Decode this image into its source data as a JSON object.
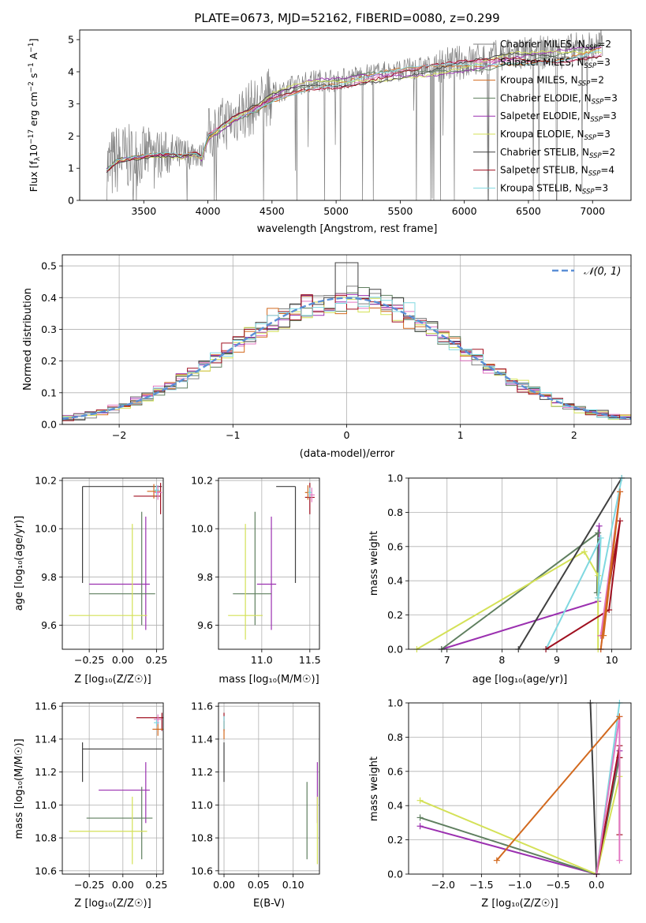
{
  "figure_title": "PLATE=0673, MJD=52162, FIBERID=0080, z=0.299",
  "legend_entries": [
    {
      "sub_main": "Chabrier MILES, N",
      "sub": "SSP",
      "tail": "=2",
      "color": "#808080"
    },
    {
      "sub_main": "Salpeter MILES, N",
      "sub": "SSP",
      "tail": "=3",
      "color": "#e377c2"
    },
    {
      "sub_main": "Kroupa MILES, N",
      "sub": "SSP",
      "tail": "=2",
      "color": "#d2691e"
    },
    {
      "sub_main": "Chabrier ELODIE, N",
      "sub": "SSP",
      "tail": "=3",
      "color": "#5f7f5f"
    },
    {
      "sub_main": "Salpeter ELODIE, N",
      "sub": "SSP",
      "tail": "=3",
      "color": "#9b30b0"
    },
    {
      "sub_main": "Kroupa ELODIE, N",
      "sub": "SSP",
      "tail": "=3",
      "color": "#d4e157"
    },
    {
      "sub_main": "Chabrier STELIB, N",
      "sub": "SSP",
      "tail": "=2",
      "color": "#404040"
    },
    {
      "sub_main": "Salpeter STELIB, N",
      "sub": "SSP",
      "tail": "=4",
      "color": "#a01020"
    },
    {
      "sub_main": "Kroupa STELIB, N",
      "sub": "SSP",
      "tail": "=3",
      "color": "#80d8e0"
    }
  ],
  "chart_data": [
    {
      "id": "spectrum",
      "type": "line",
      "xlabel": "wavelength [Angstrom, rest frame]",
      "ylabel_main": "Flux [f",
      "ylabel_rest": "10",
      "ylabel_exp": "−17",
      "ylabel_units": " erg cm",
      "ylabel_exp2": "−2",
      "ylabel_s": " s",
      "ylabel_exp3": "−1",
      "ylabel_end": " A",
      "ylabel_exp4": "−1",
      "ylabel_close": "]",
      "xlim": [
        3000,
        7300
      ],
      "ylim": [
        0,
        5.3
      ],
      "xticks": [
        3500,
        4000,
        4500,
        5000,
        5500,
        6000,
        6500,
        7000
      ],
      "yticks": [
        0,
        1,
        2,
        3,
        4,
        5
      ],
      "grid": false,
      "legend": "right",
      "model_x": [
        3210,
        3300,
        3400,
        3500,
        3600,
        3700,
        3800,
        3900,
        3950,
        4000,
        4100,
        4200,
        4300,
        4400,
        4500,
        4600,
        4700,
        4800,
        4900,
        5000,
        5100,
        5200,
        5300,
        5400,
        5500,
        5600,
        5700,
        5800,
        5900,
        6000,
        6100,
        6200,
        6300,
        6400,
        6500,
        6600,
        6700,
        6800,
        6900,
        7000,
        7080
      ],
      "model_y": [
        0.95,
        1.3,
        1.35,
        1.4,
        1.45,
        1.45,
        1.4,
        1.5,
        1.35,
        2.0,
        2.3,
        2.6,
        2.8,
        3.0,
        3.3,
        3.45,
        3.6,
        3.7,
        3.75,
        3.75,
        3.8,
        3.9,
        3.95,
        4.0,
        4.05,
        4.1,
        4.15,
        4.2,
        4.25,
        4.3,
        4.35,
        4.4,
        4.5,
        4.55,
        4.55,
        4.6,
        4.6,
        4.65,
        4.7,
        4.75,
        4.8
      ]
    },
    {
      "id": "residuals",
      "type": "histogram",
      "xlabel": "(data-model)/error",
      "ylabel": "Normed distribution",
      "xlim": [
        -2.5,
        2.5
      ],
      "ylim": [
        0,
        0.535
      ],
      "xticks": [
        -2,
        -1,
        0,
        1,
        2
      ],
      "yticks": [
        0.0,
        0.1,
        0.2,
        0.3,
        0.4,
        0.5
      ],
      "grid": true,
      "legend_label": "N(0,1)",
      "legend": "top-right",
      "bin_width": 0.1
    },
    {
      "id": "age_vs_Z",
      "type": "scatter",
      "xlabel": "Z [log10(Z/Z☉)]",
      "ylabel": "age [log10(age/yr)]",
      "xlim": [
        -0.45,
        0.3
      ],
      "ylim": [
        9.5,
        10.21
      ],
      "xticks": [
        -0.25,
        0.0,
        0.25
      ],
      "yticks": [
        9.6,
        9.8,
        10.0,
        10.2
      ],
      "points": [
        {
          "x": -0.3,
          "y": 10.175,
          "xerr": [
            0,
            0.59
          ],
          "yerr": [
            0.4,
            0
          ],
          "color": "#404040"
        },
        {
          "x": 0.05,
          "y": 9.77,
          "xerr": [
            0.3,
            0.15
          ],
          "yerr": [
            0,
            0
          ],
          "color": "#9b30b0"
        },
        {
          "x": 0.17,
          "y": 9.78,
          "xerr": [
            0,
            0
          ],
          "yerr": [
            0.2,
            0.27
          ],
          "color": "#9b30b0"
        },
        {
          "x": 0.0,
          "y": 9.73,
          "xerr": [
            0.25,
            0.24
          ],
          "yerr": [
            0,
            0
          ],
          "color": "#5f7f5f"
        },
        {
          "x": 0.14,
          "y": 9.73,
          "xerr": [
            0,
            0
          ],
          "yerr": [
            0.13,
            0.34
          ],
          "color": "#5f7f5f"
        },
        {
          "x": -0.1,
          "y": 9.64,
          "xerr": [
            0.3,
            0.28
          ],
          "yerr": [
            0,
            0
          ],
          "color": "#d4e157"
        },
        {
          "x": 0.07,
          "y": 9.64,
          "xerr": [
            0,
            0
          ],
          "yerr": [
            0.1,
            0.38
          ],
          "color": "#d4e157"
        },
        {
          "x": 0.18,
          "y": 10.135,
          "xerr": [
            0.1,
            0.1
          ],
          "yerr": [
            0,
            0
          ],
          "color": "#a01020"
        },
        {
          "x": 0.28,
          "y": 10.13,
          "xerr": [
            0,
            0
          ],
          "yerr": [
            0.07,
            0.06
          ],
          "color": "#a01020"
        },
        {
          "x": 0.23,
          "y": 10.155,
          "xerr": [
            0.05,
            0.05
          ],
          "yerr": [
            0.03,
            0.03
          ],
          "color": "#d2691e"
        },
        {
          "x": 0.26,
          "y": 10.15,
          "xerr": [
            0.03,
            0.03
          ],
          "yerr": [
            0.03,
            0.03
          ],
          "color": "#e377c2"
        },
        {
          "x": 0.25,
          "y": 10.16,
          "xerr": [
            0.02,
            0.02
          ],
          "yerr": [
            0.02,
            0.02
          ],
          "color": "#80d8e0"
        }
      ]
    },
    {
      "id": "age_vs_mass",
      "type": "scatter",
      "xlabel": "mass [log10(M/M☉)]",
      "ylabel": "",
      "xlim": [
        10.55,
        11.6
      ],
      "ylim": [
        9.5,
        10.21
      ],
      "xticks": [
        11.0,
        11.5
      ],
      "yticks": [
        9.6,
        9.8,
        10.0,
        10.2
      ],
      "points": [
        {
          "x": 11.35,
          "y": 10.175,
          "xerr": [
            0.2,
            0
          ],
          "yerr": [
            0.4,
            0
          ],
          "color": "#404040"
        },
        {
          "x": 11.05,
          "y": 9.77,
          "xerr": [
            0.1,
            0.1
          ],
          "yerr": [
            0,
            0
          ],
          "color": "#9b30b0"
        },
        {
          "x": 11.1,
          "y": 9.78,
          "xerr": [
            0,
            0
          ],
          "yerr": [
            0.2,
            0.27
          ],
          "color": "#9b30b0"
        },
        {
          "x": 10.9,
          "y": 9.73,
          "xerr": [
            0.2,
            0.2
          ],
          "yerr": [
            0,
            0
          ],
          "color": "#5f7f5f"
        },
        {
          "x": 10.93,
          "y": 9.73,
          "xerr": [
            0,
            0
          ],
          "yerr": [
            0.13,
            0.34
          ],
          "color": "#5f7f5f"
        },
        {
          "x": 10.83,
          "y": 9.64,
          "xerr": [
            0.18,
            0.18
          ],
          "yerr": [
            0,
            0
          ],
          "color": "#d4e157"
        },
        {
          "x": 10.83,
          "y": 9.64,
          "xerr": [
            0,
            0
          ],
          "yerr": [
            0.1,
            0.38
          ],
          "color": "#d4e157"
        },
        {
          "x": 11.5,
          "y": 10.13,
          "xerr": [
            0.05,
            0.05
          ],
          "yerr": [
            0.07,
            0.06
          ],
          "color": "#a01020"
        },
        {
          "x": 11.48,
          "y": 10.15,
          "xerr": [
            0.03,
            0.03
          ],
          "yerr": [
            0.03,
            0.03
          ],
          "color": "#d2691e"
        },
        {
          "x": 11.52,
          "y": 10.14,
          "xerr": [
            0.03,
            0.03
          ],
          "yerr": [
            0.03,
            0.03
          ],
          "color": "#e377c2"
        },
        {
          "x": 11.5,
          "y": 10.15,
          "xerr": [
            0.02,
            0.02
          ],
          "yerr": [
            0.02,
            0.02
          ],
          "color": "#80d8e0"
        }
      ]
    },
    {
      "id": "weight_vs_age",
      "type": "line",
      "xlabel": "age [log10(age/yr)]",
      "ylabel": "mass weight",
      "xlim": [
        6.3,
        10.35
      ],
      "ylim": [
        0,
        1.0
      ],
      "xticks": [
        7,
        8,
        9,
        10
      ],
      "yticks": [
        0.0,
        0.2,
        0.4,
        0.6,
        0.8,
        1.0
      ],
      "series": [
        {
          "color": "#9b30b0",
          "x": [
            6.9,
            9.75,
            9.77,
            9.75
          ],
          "y": [
            0.0,
            0.28,
            0.72,
            0.33
          ]
        },
        {
          "color": "#5f7f5f",
          "x": [
            6.9,
            9.75,
            9.73
          ],
          "y": [
            0.0,
            0.68,
            0.33
          ]
        },
        {
          "color": "#d4e157",
          "x": [
            6.45,
            9.5,
            9.75,
            9.75
          ],
          "y": [
            0.0,
            0.57,
            0.43,
            0.0
          ]
        },
        {
          "color": "#404040",
          "x": [
            8.3,
            10.18
          ],
          "y": [
            0.0,
            1.0
          ]
        },
        {
          "color": "#80d8e0",
          "x": [
            8.8,
            9.8,
            9.75,
            10.18
          ],
          "y": [
            0.0,
            0.65,
            0.3,
            1.0
          ]
        },
        {
          "color": "#a01020",
          "x": [
            8.8,
            9.95,
            10.15,
            9.8
          ],
          "y": [
            0.0,
            0.23,
            0.75,
            0.08
          ]
        },
        {
          "color": "#e377c2",
          "x": [
            9.8,
            10.15,
            9.8
          ],
          "y": [
            0.0,
            0.92,
            0.08
          ]
        },
        {
          "color": "#d2691e",
          "x": [
            9.8,
            10.15,
            9.85
          ],
          "y": [
            0.0,
            0.92,
            0.08
          ]
        }
      ]
    },
    {
      "id": "mass_vs_Z",
      "type": "scatter",
      "xlabel": "Z [log10(Z/Z☉)]",
      "ylabel": "mass [log10(M/M☉)]",
      "xlim": [
        -0.45,
        0.3
      ],
      "ylim": [
        10.58,
        11.62
      ],
      "xticks": [
        -0.25,
        0.0,
        0.25
      ],
      "yticks": [
        10.6,
        10.8,
        11.0,
        11.2,
        11.4,
        11.6
      ],
      "points": [
        {
          "x": -0.3,
          "y": 11.34,
          "xerr": [
            0,
            0.59
          ],
          "yerr": [
            0.2,
            0.04
          ],
          "color": "#404040"
        },
        {
          "x": 0.0,
          "y": 11.09,
          "xerr": [
            0.18,
            0.2
          ],
          "yerr": [
            0,
            0
          ],
          "color": "#9b30b0"
        },
        {
          "x": 0.17,
          "y": 11.09,
          "xerr": [
            0,
            0
          ],
          "yerr": [
            0.2,
            0.17
          ],
          "color": "#9b30b0"
        },
        {
          "x": -0.02,
          "y": 10.92,
          "xerr": [
            0.25,
            0.24
          ],
          "yerr": [
            0,
            0
          ],
          "color": "#5f7f5f"
        },
        {
          "x": 0.14,
          "y": 10.92,
          "xerr": [
            0,
            0
          ],
          "yerr": [
            0.25,
            0.19
          ],
          "color": "#5f7f5f"
        },
        {
          "x": -0.1,
          "y": 10.84,
          "xerr": [
            0.3,
            0.28
          ],
          "yerr": [
            0,
            0
          ],
          "color": "#d4e157"
        },
        {
          "x": 0.07,
          "y": 10.84,
          "xerr": [
            0,
            0
          ],
          "yerr": [
            0.2,
            0.21
          ],
          "color": "#d4e157"
        },
        {
          "x": 0.2,
          "y": 11.53,
          "xerr": [
            0.1,
            0.1
          ],
          "yerr": [
            0,
            0
          ],
          "color": "#a01020"
        },
        {
          "x": 0.29,
          "y": 11.52,
          "xerr": [
            0,
            0
          ],
          "yerr": [
            0.07,
            0.04
          ],
          "color": "#a01020"
        },
        {
          "x": 0.26,
          "y": 11.46,
          "xerr": [
            0.04,
            0.04
          ],
          "yerr": [
            0.04,
            0.04
          ],
          "color": "#d2691e"
        },
        {
          "x": 0.26,
          "y": 11.52,
          "xerr": [
            0.03,
            0.03
          ],
          "yerr": [
            0.03,
            0.03
          ],
          "color": "#e377c2"
        },
        {
          "x": 0.25,
          "y": 11.5,
          "xerr": [
            0.02,
            0.02
          ],
          "yerr": [
            0.02,
            0.02
          ],
          "color": "#80d8e0"
        }
      ]
    },
    {
      "id": "mass_vs_ebv",
      "type": "scatter",
      "xlabel": "E(B-V)",
      "ylabel": "",
      "xlim": [
        -0.008,
        0.138
      ],
      "ylim": [
        10.58,
        11.62
      ],
      "xticks": [
        0.0,
        0.05,
        0.1
      ],
      "yticks": [
        10.6,
        10.8,
        11.0,
        11.2,
        11.4,
        11.6
      ],
      "points": [
        {
          "x": 0.0,
          "y": 11.34,
          "xerr": [
            0,
            0
          ],
          "yerr": [
            0.2,
            0.04
          ],
          "color": "#404040"
        },
        {
          "x": 0.0,
          "y": 11.52,
          "xerr": [
            0,
            0
          ],
          "yerr": [
            0.07,
            0.04
          ],
          "color": "#a01020"
        },
        {
          "x": 0.0,
          "y": 11.46,
          "xerr": [
            0,
            0
          ],
          "yerr": [
            0.06,
            0.05
          ],
          "color": "#d2691e"
        },
        {
          "x": 0.0,
          "y": 11.5,
          "xerr": [
            0,
            0
          ],
          "yerr": [
            0.04,
            0.04
          ],
          "color": "#80d8e0"
        },
        {
          "x": 0.12,
          "y": 10.92,
          "xerr": [
            0,
            0
          ],
          "yerr": [
            0.25,
            0.22
          ],
          "color": "#5f7f5f"
        },
        {
          "x": 0.135,
          "y": 11.09,
          "xerr": [
            0,
            0
          ],
          "yerr": [
            0.2,
            0.17
          ],
          "color": "#9b30b0"
        },
        {
          "x": 0.135,
          "y": 10.84,
          "xerr": [
            0,
            0
          ],
          "yerr": [
            0.2,
            0.21
          ],
          "color": "#d4e157"
        }
      ]
    },
    {
      "id": "weight_vs_Z",
      "type": "line",
      "xlabel": "Z [log10(Z/Z☉)]",
      "ylabel": "mass weight",
      "xlim": [
        -2.45,
        0.45
      ],
      "ylim": [
        0,
        1.0
      ],
      "xticks": [
        -2.0,
        -1.5,
        -1.0,
        -0.5,
        0.0
      ],
      "yticks": [
        0.0,
        0.2,
        0.4,
        0.6,
        0.8,
        1.0
      ],
      "series": [
        {
          "color": "#9b30b0",
          "x": [
            -2.3,
            0.0,
            0.3
          ],
          "y": [
            0.28,
            0.0,
            0.72
          ]
        },
        {
          "color": "#5f7f5f",
          "x": [
            -2.3,
            0.0,
            0.3
          ],
          "y": [
            0.33,
            0.0,
            0.68
          ]
        },
        {
          "color": "#d4e157",
          "x": [
            -2.3,
            0.0,
            0.3
          ],
          "y": [
            0.43,
            0.0,
            0.57
          ]
        },
        {
          "color": "#404040",
          "x": [
            -0.08,
            0.0
          ],
          "y": [
            1.0,
            0.0
          ]
        },
        {
          "color": "#80d8e0",
          "x": [
            0.0,
            0.3
          ],
          "y": [
            0.0,
            1.0
          ]
        },
        {
          "color": "#a01020",
          "x": [
            0.0,
            0.3,
            0.3,
            0.3
          ],
          "y": [
            0.0,
            0.75,
            0.23,
            0.68
          ]
        },
        {
          "color": "#e377c2",
          "x": [
            0.0,
            0.3,
            0.3
          ],
          "y": [
            0.0,
            0.92,
            0.08
          ]
        },
        {
          "color": "#d2691e",
          "x": [
            -1.3,
            0.3
          ],
          "y": [
            0.08,
            0.92
          ]
        }
      ]
    }
  ]
}
